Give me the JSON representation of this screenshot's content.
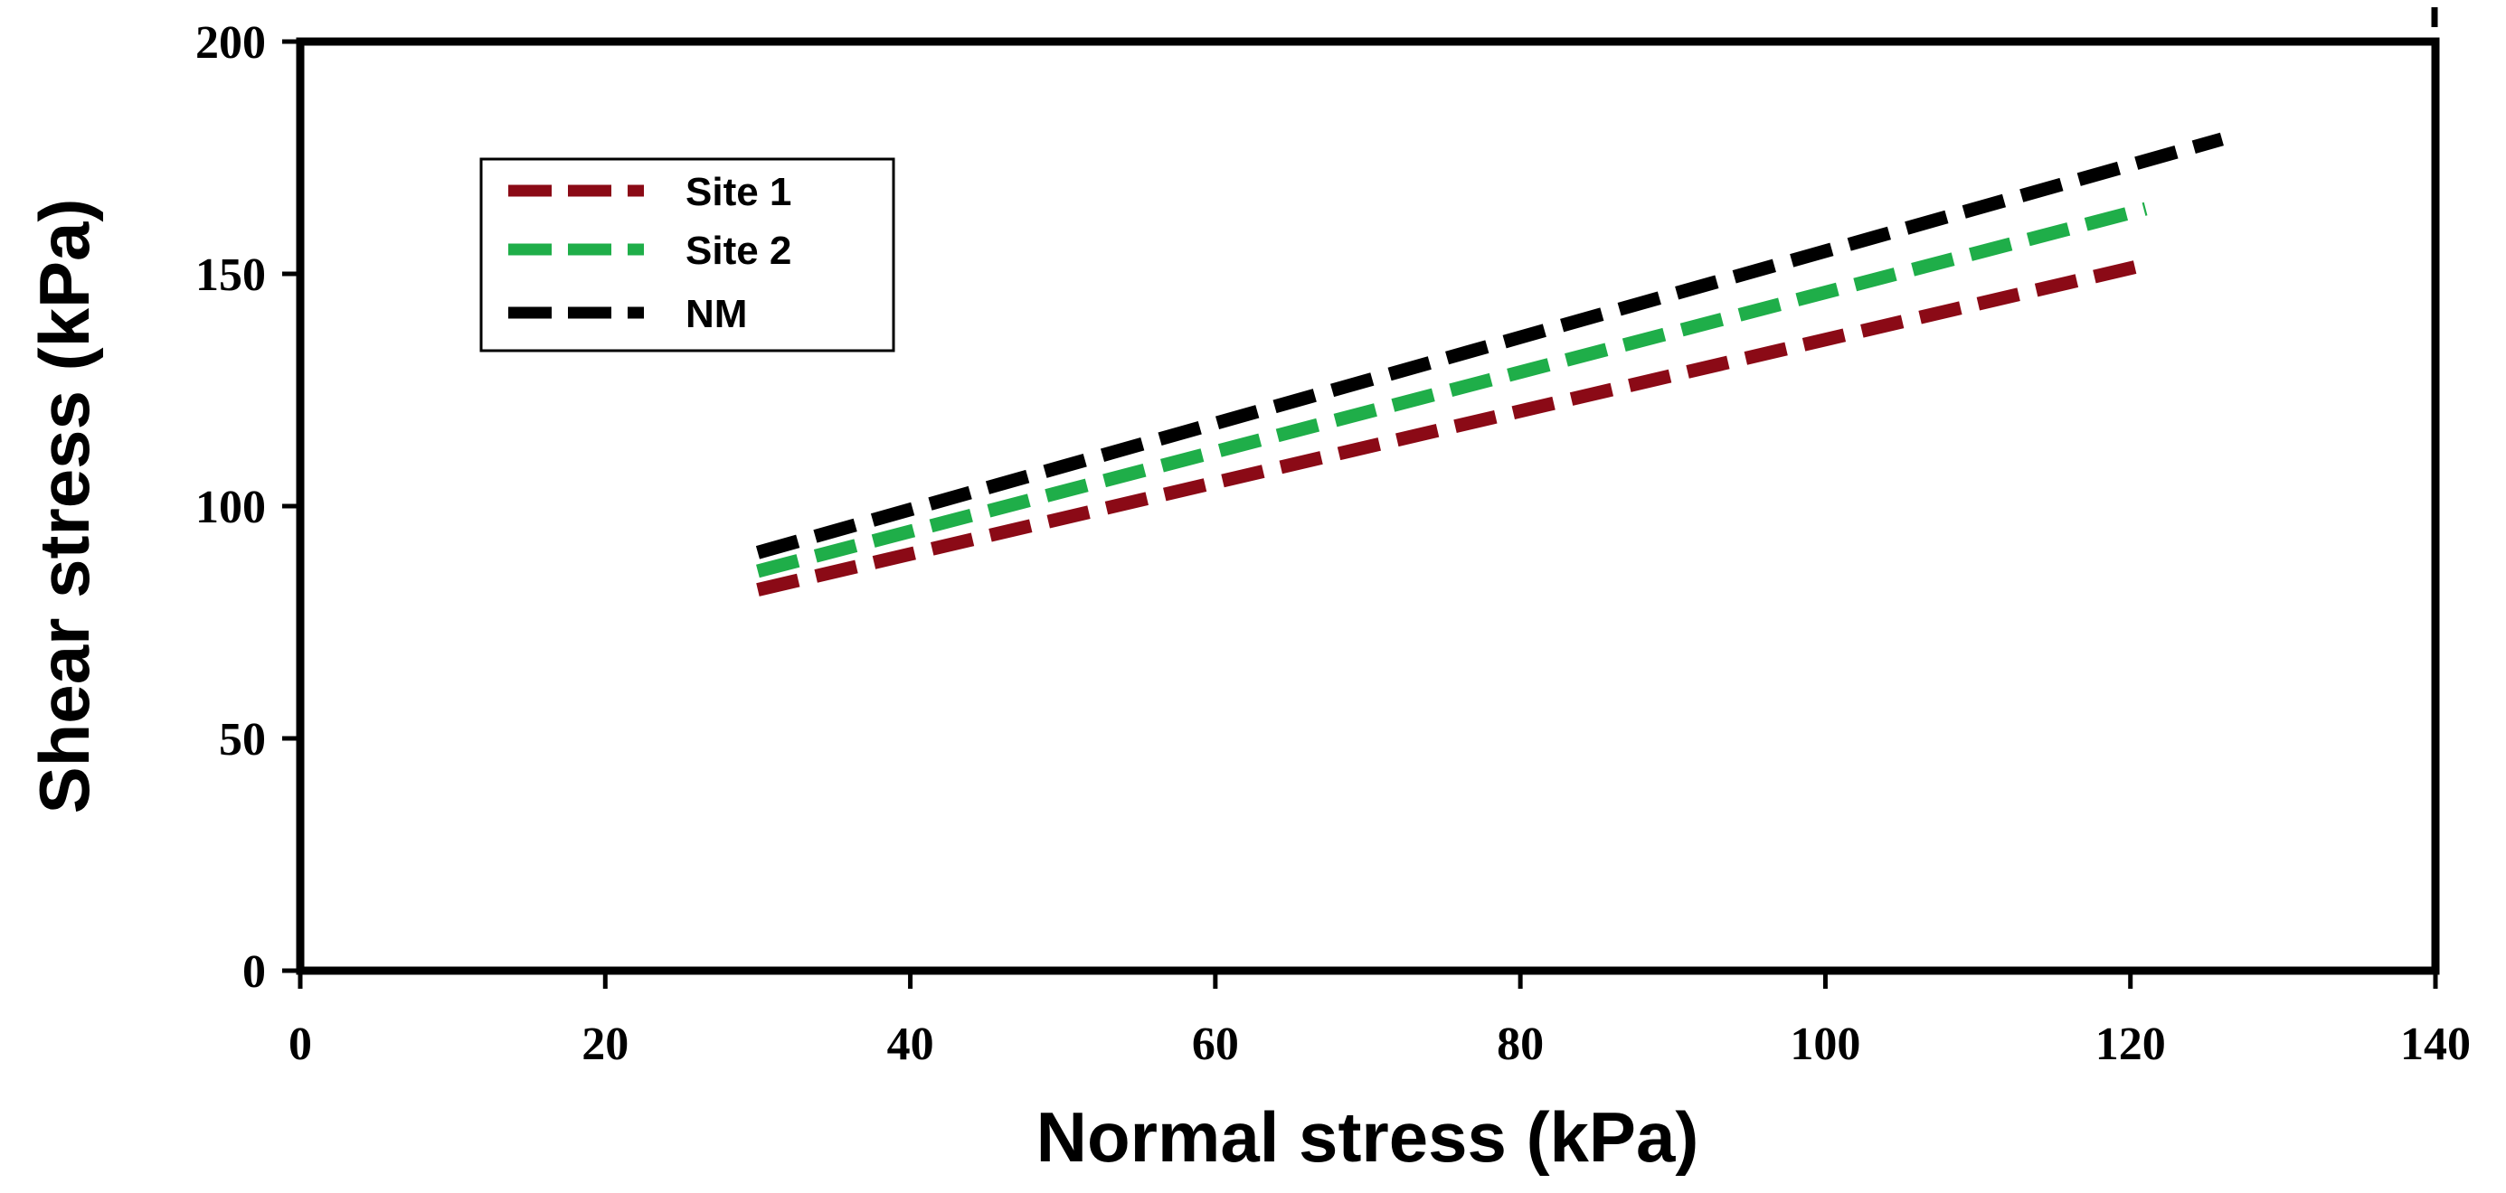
{
  "chart_data": {
    "type": "line",
    "title": "",
    "xlabel": "Normal stress (kPa)",
    "ylabel": "Shear stress (kPa)",
    "xlim": [
      0,
      140
    ],
    "ylim": [
      0,
      200
    ],
    "xticks": [
      0,
      20,
      40,
      60,
      80,
      100,
      120,
      140
    ],
    "yticks": [
      0,
      50,
      100,
      150,
      200
    ],
    "xtick_labels": [
      "0",
      "20",
      "40",
      "60",
      "80",
      "100",
      "120",
      "140"
    ],
    "ytick_labels": [
      "0",
      "50",
      "100",
      "150",
      "200"
    ],
    "grid": false,
    "legend_position": "top-left",
    "series": [
      {
        "name": "Site 1",
        "color": "#8b0a16",
        "style": "dashed",
        "x": [
          30,
          121
        ],
        "y": [
          82,
          152
        ]
      },
      {
        "name": "Site 2",
        "color": "#1fae49",
        "style": "dashed",
        "x": [
          30,
          121
        ],
        "y": [
          86,
          164
        ]
      },
      {
        "name": "NM",
        "color": "#000000",
        "style": "dashed",
        "x": [
          30,
          126
        ],
        "y": [
          90,
          179
        ]
      }
    ]
  }
}
